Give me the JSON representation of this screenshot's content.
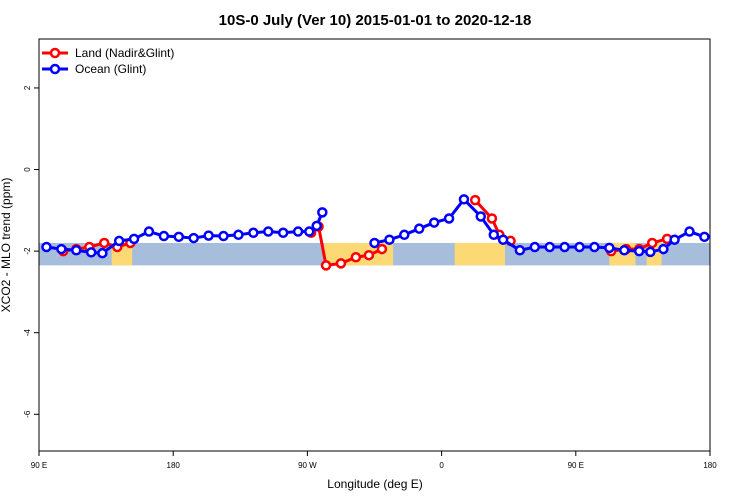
{
  "chart_data": {
    "type": "line",
    "title": "10S-0 July (Ver 10)   2015-01-01 to 2020-12-18",
    "xlabel": "Longitude (deg E)",
    "ylabel": "XCO2 - MLO trend (ppm)",
    "xlim": [
      90,
      450
    ],
    "ylim": [
      -6.9,
      3.2
    ],
    "x_ticks": [
      {
        "value": 90,
        "label": "90 E"
      },
      {
        "value": 162,
        "label": "180"
      },
      {
        "value": 234,
        "label": "90 W"
      },
      {
        "value": 306,
        "label": "0"
      },
      {
        "value": 378,
        "label": "90 E"
      },
      {
        "value": 450,
        "label": "180"
      }
    ],
    "y_ticks": [
      {
        "value": 2,
        "label": "2"
      },
      {
        "value": 0,
        "label": "0"
      },
      {
        "value": -2,
        "label": "-2"
      },
      {
        "value": -4,
        "label": "-4"
      },
      {
        "value": -6,
        "label": "-6"
      }
    ],
    "legend_position": "top-left",
    "map_band": {
      "y_top": -1.8,
      "y_bottom": -2.35,
      "ocean_color": "#a6bddb",
      "land_color": "#fdd976"
    },
    "land_ranges": [
      [
        129,
        140
      ],
      [
        243,
        280
      ],
      [
        313,
        340
      ],
      [
        396,
        410
      ],
      [
        416,
        424
      ]
    ],
    "series": [
      {
        "name": "Land (Nadir&Glint)",
        "color": "#ff0000",
        "segments": [
          [
            [
              103,
              -2.0
            ],
            [
              110,
              -1.95
            ],
            [
              117,
              -1.9
            ],
            [
              125,
              -1.8
            ],
            [
              132,
              -1.9
            ],
            [
              139,
              -1.8
            ]
          ],
          [
            [
              236,
              -1.55
            ],
            [
              240,
              -1.4
            ],
            [
              244,
              -2.35
            ],
            [
              252,
              -2.3
            ],
            [
              260,
              -2.15
            ],
            [
              267,
              -2.1
            ],
            [
              274,
              -1.95
            ]
          ],
          [
            [
              324,
              -0.75
            ],
            [
              333,
              -1.2
            ],
            [
              337,
              -1.6
            ],
            [
              343,
              -1.75
            ]
          ],
          [
            [
              397,
              -2.0
            ],
            [
              405,
              -1.95
            ],
            [
              412,
              -1.95
            ],
            [
              419,
              -1.8
            ],
            [
              427,
              -1.7
            ]
          ]
        ]
      },
      {
        "name": "Ocean (Glint)",
        "color": "#0000ff",
        "segments": [
          [
            [
              94,
              -1.9
            ],
            [
              102,
              -1.95
            ],
            [
              110,
              -1.98
            ],
            [
              118,
              -2.03
            ],
            [
              124,
              -2.05
            ],
            [
              133,
              -1.75
            ],
            [
              141,
              -1.7
            ],
            [
              149,
              -1.52
            ],
            [
              157,
              -1.63
            ],
            [
              165,
              -1.65
            ],
            [
              173,
              -1.68
            ],
            [
              181,
              -1.62
            ],
            [
              189,
              -1.63
            ],
            [
              197,
              -1.6
            ],
            [
              205,
              -1.55
            ],
            [
              213,
              -1.52
            ],
            [
              221,
              -1.55
            ],
            [
              229,
              -1.52
            ],
            [
              235,
              -1.52
            ],
            [
              239,
              -1.38
            ],
            [
              242,
              -1.05
            ]
          ],
          [
            [
              270,
              -1.8
            ],
            [
              278,
              -1.72
            ],
            [
              286,
              -1.6
            ],
            [
              294,
              -1.45
            ],
            [
              302,
              -1.3
            ],
            [
              310,
              -1.2
            ],
            [
              318,
              -0.73
            ],
            [
              327,
              -1.15
            ],
            [
              334,
              -1.6
            ],
            [
              339,
              -1.72
            ],
            [
              348,
              -1.98
            ],
            [
              356,
              -1.9
            ],
            [
              364,
              -1.9
            ],
            [
              372,
              -1.9
            ],
            [
              380,
              -1.9
            ],
            [
              388,
              -1.9
            ],
            [
              396,
              -1.92
            ],
            [
              404,
              -1.98
            ],
            [
              412,
              -2.0
            ],
            [
              418,
              -2.02
            ],
            [
              425,
              -1.95
            ],
            [
              431,
              -1.72
            ],
            [
              439,
              -1.52
            ],
            [
              447,
              -1.65
            ]
          ]
        ]
      }
    ]
  }
}
